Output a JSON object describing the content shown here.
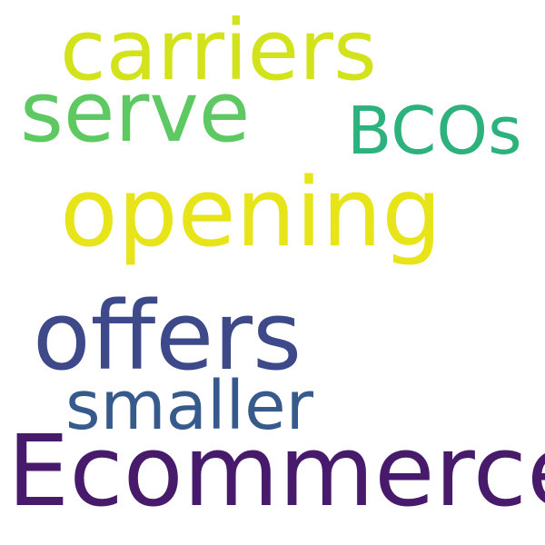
{
  "words": [
    {
      "id": "carriers",
      "text": "carriers",
      "color": "#d2e21b"
    },
    {
      "id": "serve",
      "text": "serve",
      "color": "#5ec962"
    },
    {
      "id": "bcos",
      "text": "BCOs",
      "color": "#2db27d"
    },
    {
      "id": "opening",
      "text": "opening",
      "color": "#e7e419"
    },
    {
      "id": "offers",
      "text": "offers",
      "color": "#3e4989"
    },
    {
      "id": "smaller",
      "text": "smaller",
      "color": "#375a8c"
    },
    {
      "id": "ecommerce",
      "text": "Ecommerce",
      "color": "#481a6c"
    }
  ]
}
